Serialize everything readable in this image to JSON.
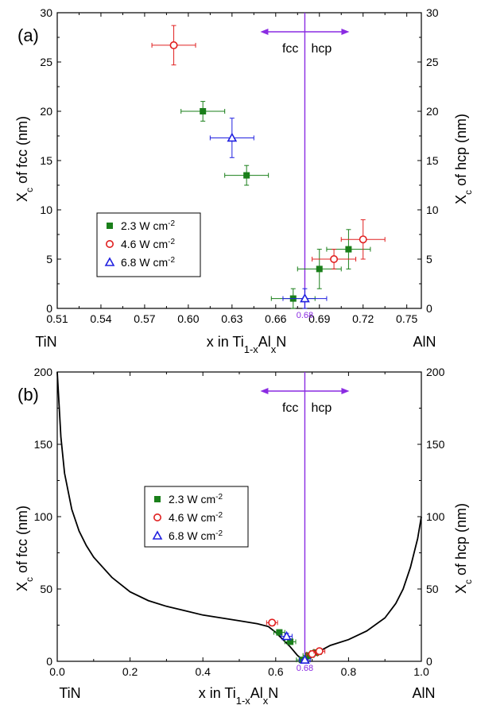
{
  "colors": {
    "fcc_hcp_boundary": "#8a2be2",
    "series_2_3": "#1a7f1a",
    "series_4_6": "#e02020",
    "series_6_8": "#2020e0",
    "curve": "#000000"
  },
  "panels": {
    "a": {
      "tag": "(a)",
      "y_title_main": "X",
      "y_title_sub": "c",
      "y_title_rest": " of fcc (nm)",
      "y2_title_main": "X",
      "y2_title_sub": "c",
      "y2_title_rest": " of hcp (nm)",
      "x_title_pre": "x in Ti",
      "x_title_sub1": "1-x",
      "x_title_mid": "Al",
      "x_title_sub2": "x",
      "x_title_post": "N",
      "left_label": "TiN",
      "right_label": "AlN",
      "boundary_label": "0.68",
      "phase_left": "fcc",
      "phase_right": "hcp"
    },
    "b": {
      "tag": "(b)",
      "y_title_main": "X",
      "y_title_sub": "c",
      "y_title_rest": " of fcc (nm)",
      "y2_title_main": "X",
      "y2_title_sub": "c",
      "y2_title_rest": " of hcp (nm)",
      "x_title_pre": "x in Ti",
      "x_title_sub1": "1-x",
      "x_title_mid": "Al",
      "x_title_sub2": "x",
      "x_title_post": "N",
      "left_label": "TiN",
      "right_label": "AlN",
      "boundary_label": "0.68",
      "phase_left": "fcc",
      "phase_right": "hcp"
    }
  },
  "legend": [
    {
      "label": "2.3 W cm",
      "sup": "-2",
      "marker": "square"
    },
    {
      "label": "4.6 W cm",
      "sup": "-2",
      "marker": "circle"
    },
    {
      "label": "6.8 W cm",
      "sup": "-2",
      "marker": "triangle"
    }
  ],
  "chart_data": [
    {
      "type": "scatter",
      "panel": "a",
      "xlim": [
        0.51,
        0.76
      ],
      "ylim": [
        0,
        30
      ],
      "x_ticks": [
        "0.51",
        "0.54",
        "0.57",
        "0.60",
        "0.63",
        "0.66",
        "0.69",
        "0.72",
        "0.75"
      ],
      "y_ticks": [
        "0",
        "5",
        "10",
        "15",
        "20",
        "25",
        "30"
      ],
      "boundary_x": 0.68,
      "series": [
        {
          "name": "2.3 W cm-2",
          "marker": "square",
          "points": [
            {
              "x": 0.61,
              "y": 20.0,
              "xerr": 0.015,
              "yerr": 1.0
            },
            {
              "x": 0.64,
              "y": 13.5,
              "xerr": 0.015,
              "yerr": 1.0
            },
            {
              "x": 0.672,
              "y": 1.0,
              "xerr": 0.015,
              "yerr": 1.0
            },
            {
              "x": 0.69,
              "y": 4.0,
              "xerr": 0.015,
              "yerr": 2.0
            },
            {
              "x": 0.71,
              "y": 6.0,
              "xerr": 0.015,
              "yerr": 2.0
            }
          ]
        },
        {
          "name": "4.6 W cm-2",
          "marker": "circle",
          "points": [
            {
              "x": 0.59,
              "y": 26.7,
              "xerr": 0.015,
              "yerr": 2.0
            },
            {
              "x": 0.7,
              "y": 5.0,
              "xerr": 0.015,
              "yerr": 1.0
            },
            {
              "x": 0.72,
              "y": 7.0,
              "xerr": 0.015,
              "yerr": 2.0
            }
          ]
        },
        {
          "name": "6.8 W cm-2",
          "marker": "triangle",
          "points": [
            {
              "x": 0.63,
              "y": 17.3,
              "xerr": 0.015,
              "yerr": 2.0
            },
            {
              "x": 0.68,
              "y": 1.0,
              "xerr": 0.015,
              "yerr": 1.0
            }
          ]
        }
      ]
    },
    {
      "type": "scatter",
      "panel": "b",
      "xlim": [
        0.0,
        1.0
      ],
      "ylim": [
        0,
        200
      ],
      "x_ticks": [
        "0.0",
        "0.2",
        "0.4",
        "0.6",
        "0.8",
        "1.0"
      ],
      "y_ticks": [
        "0",
        "50",
        "100",
        "150",
        "200"
      ],
      "boundary_x": 0.68,
      "curve": {
        "x": [
          0.0,
          0.01,
          0.02,
          0.04,
          0.06,
          0.08,
          0.1,
          0.15,
          0.2,
          0.25,
          0.3,
          0.35,
          0.4,
          0.45,
          0.5,
          0.55,
          0.58,
          0.6,
          0.62,
          0.64,
          0.66,
          0.68,
          0.7,
          0.72,
          0.75,
          0.8,
          0.85,
          0.9,
          0.93,
          0.95,
          0.97,
          0.99,
          1.0
        ],
        "y": [
          200,
          155,
          130,
          105,
          90,
          80,
          72,
          58,
          48,
          42,
          38,
          35,
          32,
          30,
          28,
          26,
          24,
          20,
          15,
          10,
          4,
          0,
          4,
          7,
          11,
          15,
          21,
          30,
          40,
          50,
          65,
          85,
          100
        ]
      },
      "series": [
        {
          "name": "2.3 W cm-2",
          "marker": "square",
          "points": [
            {
              "x": 0.61,
              "y": 20.0,
              "xerr": 0.015,
              "yerr": 1.0
            },
            {
              "x": 0.64,
              "y": 13.5,
              "xerr": 0.015,
              "yerr": 1.0
            },
            {
              "x": 0.672,
              "y": 1.0,
              "xerr": 0.015,
              "yerr": 1.0
            },
            {
              "x": 0.69,
              "y": 4.0,
              "xerr": 0.015,
              "yerr": 2.0
            },
            {
              "x": 0.71,
              "y": 6.0,
              "xerr": 0.015,
              "yerr": 2.0
            }
          ]
        },
        {
          "name": "4.6 W cm-2",
          "marker": "circle",
          "points": [
            {
              "x": 0.59,
              "y": 26.7,
              "xerr": 0.015,
              "yerr": 2.0
            },
            {
              "x": 0.7,
              "y": 5.0,
              "xerr": 0.015,
              "yerr": 1.0
            },
            {
              "x": 0.72,
              "y": 7.0,
              "xerr": 0.015,
              "yerr": 2.0
            }
          ]
        },
        {
          "name": "6.8 W cm-2",
          "marker": "triangle",
          "points": [
            {
              "x": 0.63,
              "y": 17.3,
              "xerr": 0.015,
              "yerr": 2.0
            },
            {
              "x": 0.68,
              "y": 1.0,
              "xerr": 0.015,
              "yerr": 1.0
            }
          ]
        }
      ]
    }
  ]
}
